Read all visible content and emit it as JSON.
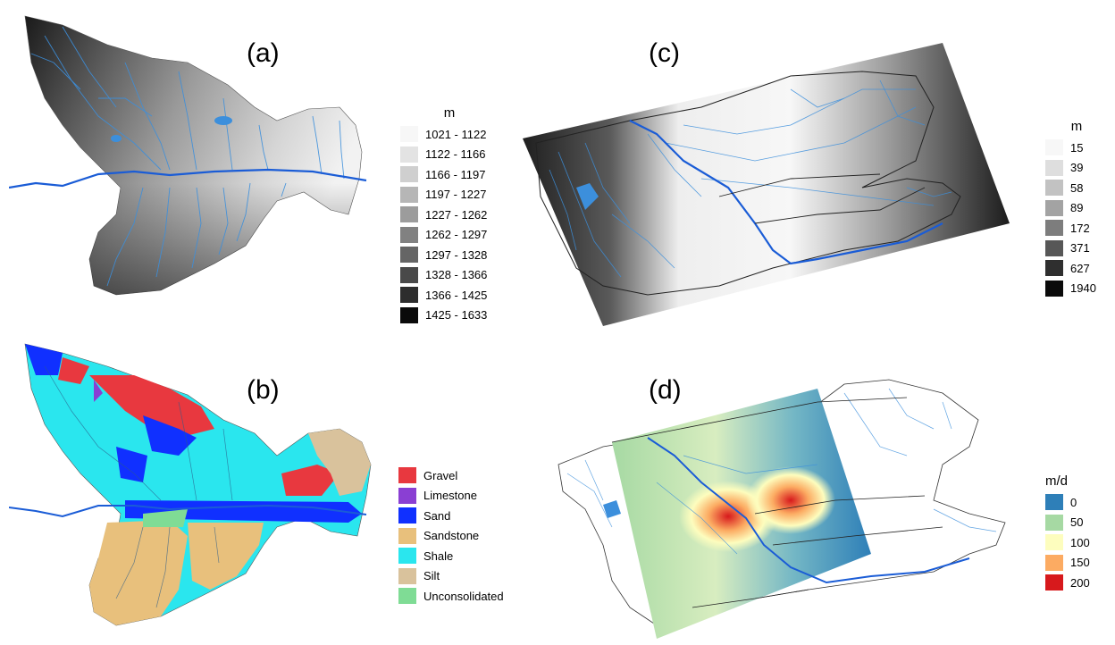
{
  "panels": {
    "a": {
      "label": "(a)",
      "legend_title": "m",
      "legend": [
        {
          "label": "1021 - 1122",
          "color": "#f7f7f7"
        },
        {
          "label": "1122 - 1166",
          "color": "#e3e3e3"
        },
        {
          "label": "1166 - 1197",
          "color": "#cfcfcf"
        },
        {
          "label": "1197 - 1227",
          "color": "#b6b6b6"
        },
        {
          "label": "1227 - 1262",
          "color": "#9c9c9c"
        },
        {
          "label": "1262 - 1297",
          "color": "#818181"
        },
        {
          "label": "1297 - 1328",
          "color": "#656565"
        },
        {
          "label": "1328 - 1366",
          "color": "#494949"
        },
        {
          "label": "1366 - 1425",
          "color": "#2d2d2d"
        },
        {
          "label": "1425 - 1633",
          "color": "#0a0a0a"
        }
      ]
    },
    "b": {
      "label": "(b)",
      "legend": [
        {
          "label": "Gravel",
          "color": "#e8383f"
        },
        {
          "label": "Limestone",
          "color": "#8a3fd3"
        },
        {
          "label": "Sand",
          "color": "#1030ff"
        },
        {
          "label": "Sandstone",
          "color": "#e8c07c"
        },
        {
          "label": "Shale",
          "color": "#2ae6ee"
        },
        {
          "label": "Silt",
          "color": "#d9c29c"
        },
        {
          "label": "Unconsolidated",
          "color": "#7fdc95"
        }
      ]
    },
    "c": {
      "label": "(c)",
      "legend_title": "m",
      "legend": [
        {
          "label": "15",
          "color": "#f7f7f7"
        },
        {
          "label": "39",
          "color": "#dedede"
        },
        {
          "label": "58",
          "color": "#c2c2c2"
        },
        {
          "label": "89",
          "color": "#a3a3a3"
        },
        {
          "label": "172",
          "color": "#7d7d7d"
        },
        {
          "label": "371",
          "color": "#575757"
        },
        {
          "label": "627",
          "color": "#2f2f2f"
        },
        {
          "label": "1940",
          "color": "#0a0a0a"
        }
      ]
    },
    "d": {
      "label": "(d)",
      "legend_title": "m/d",
      "legend": [
        {
          "label": "0",
          "color": "#2e7fb8"
        },
        {
          "label": "50",
          "color": "#a6d9a3"
        },
        {
          "label": "100",
          "color": "#fdfdbe"
        },
        {
          "label": "150",
          "color": "#fcab62"
        },
        {
          "label": "200",
          "color": "#d7191c"
        }
      ]
    }
  },
  "colors": {
    "river": "#1a5cd6",
    "stream": "#3c8fdc",
    "boundary": "#222222"
  }
}
